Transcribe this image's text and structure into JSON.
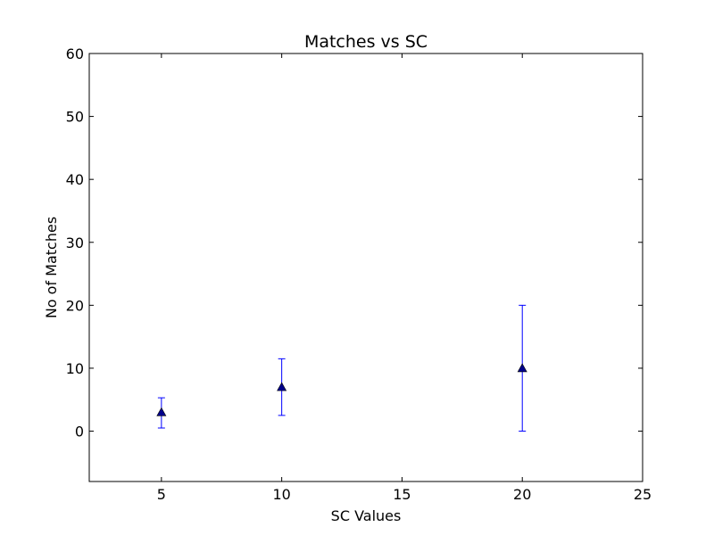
{
  "chart_data": {
    "type": "scatter",
    "title": "Matches vs SC",
    "xlabel": "SC Values",
    "ylabel": "No of Matches",
    "xlim": [
      2,
      25
    ],
    "ylim": [
      -8,
      60
    ],
    "xticks": [
      5,
      10,
      15,
      20,
      25
    ],
    "yticks": [
      0,
      10,
      20,
      30,
      40,
      50,
      60
    ],
    "grid": false,
    "marker": "triangle",
    "color": "#00008b",
    "errorbar_color": "#0000ff",
    "points": [
      {
        "x": 5,
        "y": 3,
        "yerr_low": 0.5,
        "yerr_high": 5.3
      },
      {
        "x": 10,
        "y": 7,
        "yerr_low": 2.5,
        "yerr_high": 11.5
      },
      {
        "x": 20,
        "y": 10,
        "yerr_low": 0,
        "yerr_high": 20
      }
    ]
  }
}
